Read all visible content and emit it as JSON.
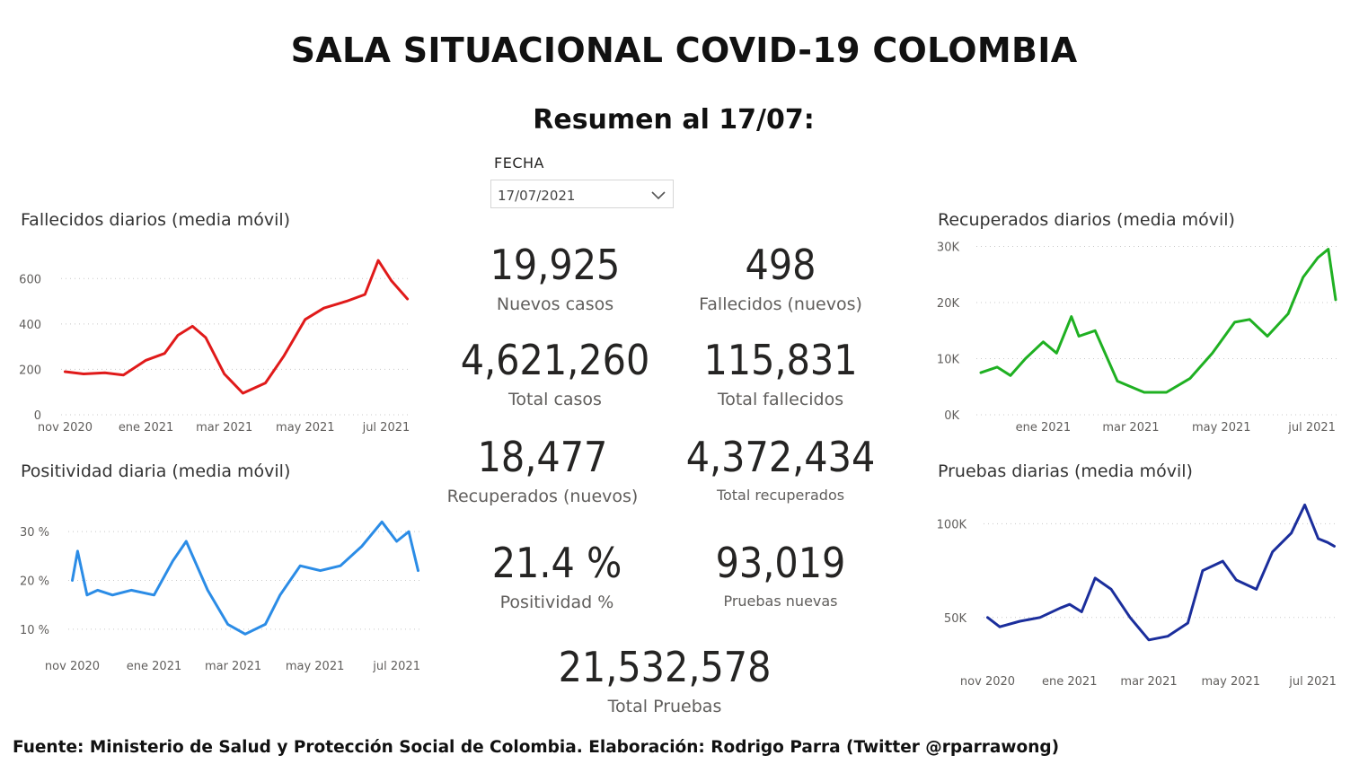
{
  "header": {
    "title": "SALA SITUACIONAL COVID-19 COLOMBIA",
    "subtitle": "Resumen al 17/07:"
  },
  "date_filter": {
    "label": "FECHA",
    "value": "17/07/2021",
    "icon": "chevron-down-icon"
  },
  "kpis": {
    "nuevos_casos": {
      "value": "19,925",
      "label": "Nuevos casos"
    },
    "fallecidos_nuevos": {
      "value": "498",
      "label": "Fallecidos (nuevos)"
    },
    "total_casos": {
      "value": "4,621,260",
      "label": "Total casos"
    },
    "total_fallecidos": {
      "value": "115,831",
      "label": "Total fallecidos"
    },
    "recuperados_nuevos": {
      "value": "18,477",
      "label": "Recuperados (nuevos)"
    },
    "total_recuperados": {
      "value": "4,372,434",
      "label": "Total recuperados"
    },
    "positividad": {
      "value": "21.4 %",
      "label": "Positividad %"
    },
    "pruebas_nuevas": {
      "value": "93,019",
      "label": "Pruebas nuevas"
    },
    "total_pruebas": {
      "value": "21,532,578",
      "label": "Total Pruebas"
    }
  },
  "footer": "Fuente: Ministerio de Salud y Protección Social de Colombia. Elaboración: Rodrigo Parra (Twitter @rparrawong)",
  "chart_data": [
    {
      "id": "fallecidos",
      "type": "line",
      "title": "Fallecidos diarios (media móvil)",
      "color": "#e01a1a",
      "ylim": [
        0,
        700
      ],
      "yticks": [
        0,
        200,
        400,
        600
      ],
      "ytick_labels": [
        "0",
        "200",
        "400",
        "600"
      ],
      "xticks": [
        "2020-11-01",
        "2021-01-01",
        "2021-03-01",
        "2021-05-01",
        "2021-07-01"
      ],
      "xtick_labels": [
        "nov 2020",
        "ene 2021",
        "mar 2021",
        "may 2021",
        "jul 2021"
      ],
      "grid": true,
      "x": [
        "2020-11-01",
        "2020-11-15",
        "2020-12-01",
        "2020-12-15",
        "2021-01-01",
        "2021-01-15",
        "2021-01-25",
        "2021-02-05",
        "2021-02-15",
        "2021-03-01",
        "2021-03-15",
        "2021-04-01",
        "2021-04-15",
        "2021-05-01",
        "2021-05-15",
        "2021-06-01",
        "2021-06-15",
        "2021-06-25",
        "2021-07-05",
        "2021-07-17"
      ],
      "y": [
        190,
        180,
        185,
        175,
        240,
        270,
        350,
        390,
        340,
        180,
        95,
        140,
        260,
        420,
        470,
        500,
        530,
        680,
        590,
        510
      ]
    },
    {
      "id": "positividad",
      "type": "line",
      "title": "Positividad diaria (media móvil)",
      "color": "#2b8ce6",
      "ylim": [
        5,
        35
      ],
      "yticks": [
        10,
        20,
        30
      ],
      "ytick_labels": [
        "10 %",
        "20 %",
        "30 %"
      ],
      "xticks": [
        "2020-11-01",
        "2021-01-01",
        "2021-03-01",
        "2021-05-01",
        "2021-07-01"
      ],
      "xtick_labels": [
        "nov 2020",
        "ene 2021",
        "mar 2021",
        "may 2021",
        "jul 2021"
      ],
      "grid": true,
      "x": [
        "2020-11-01",
        "2020-11-05",
        "2020-11-12",
        "2020-11-20",
        "2020-12-01",
        "2020-12-15",
        "2021-01-01",
        "2021-01-15",
        "2021-01-25",
        "2021-02-10",
        "2021-02-25",
        "2021-03-10",
        "2021-03-25",
        "2021-04-05",
        "2021-04-20",
        "2021-05-05",
        "2021-05-20",
        "2021-06-05",
        "2021-06-20",
        "2021-07-01",
        "2021-07-10",
        "2021-07-17"
      ],
      "y": [
        20,
        26,
        17,
        18,
        17,
        18,
        17,
        24,
        28,
        18,
        11,
        9,
        11,
        17,
        23,
        22,
        23,
        27,
        32,
        28,
        30,
        22
      ]
    },
    {
      "id": "recuperados",
      "type": "line",
      "title": "Recuperados diarios (media móvil)",
      "color": "#1fb022",
      "ylim": [
        0,
        32000
      ],
      "yticks": [
        0,
        10000,
        20000,
        30000
      ],
      "ytick_labels": [
        "0K",
        "10K",
        "20K",
        "30K"
      ],
      "xticks": [
        "2021-01-01",
        "2021-03-01",
        "2021-05-01",
        "2021-07-01"
      ],
      "xtick_labels": [
        "ene 2021",
        "mar 2021",
        "may 2021",
        "jul 2021"
      ],
      "grid": true,
      "x": [
        "2020-11-20",
        "2020-12-01",
        "2020-12-10",
        "2020-12-20",
        "2021-01-01",
        "2021-01-10",
        "2021-01-20",
        "2021-01-25",
        "2021-02-05",
        "2021-02-20",
        "2021-03-10",
        "2021-03-25",
        "2021-04-10",
        "2021-04-25",
        "2021-05-10",
        "2021-05-20",
        "2021-06-01",
        "2021-06-15",
        "2021-06-25",
        "2021-07-05",
        "2021-07-12",
        "2021-07-17"
      ],
      "y": [
        7500,
        8500,
        7000,
        10000,
        13000,
        11000,
        17500,
        14000,
        15000,
        6000,
        4000,
        4000,
        6500,
        11000,
        16500,
        17000,
        14000,
        18000,
        24500,
        28000,
        29500,
        20500
      ]
    },
    {
      "id": "pruebas",
      "type": "line",
      "title": "Pruebas diarias (media móvil)",
      "color": "#1b2e9c",
      "ylim": [
        25000,
        115000
      ],
      "yticks": [
        50000,
        100000
      ],
      "ytick_labels": [
        "50K",
        "100K"
      ],
      "xticks": [
        "2020-11-01",
        "2021-01-01",
        "2021-03-01",
        "2021-05-01",
        "2021-07-01"
      ],
      "xtick_labels": [
        "nov 2020",
        "ene 2021",
        "mar 2021",
        "may 2021",
        "jul 2021"
      ],
      "grid": true,
      "x": [
        "2020-11-01",
        "2020-11-10",
        "2020-11-25",
        "2020-12-10",
        "2020-12-25",
        "2021-01-01",
        "2021-01-10",
        "2021-01-20",
        "2021-02-01",
        "2021-02-15",
        "2021-03-01",
        "2021-03-15",
        "2021-03-30",
        "2021-04-10",
        "2021-04-25",
        "2021-05-05",
        "2021-05-20",
        "2021-06-01",
        "2021-06-15",
        "2021-06-25",
        "2021-07-05",
        "2021-07-12",
        "2021-07-17"
      ],
      "y": [
        50000,
        45000,
        48000,
        50000,
        55000,
        57000,
        53000,
        71000,
        65000,
        50000,
        38000,
        40000,
        47000,
        75000,
        80000,
        70000,
        65000,
        85000,
        95000,
        110000,
        92000,
        90000,
        88000
      ]
    }
  ]
}
